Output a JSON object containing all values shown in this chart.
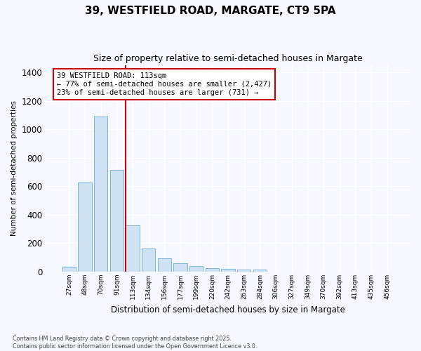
{
  "title1": "39, WESTFIELD ROAD, MARGATE, CT9 5PA",
  "title2": "Size of property relative to semi-detached houses in Margate",
  "xlabel": "Distribution of semi-detached houses by size in Margate",
  "ylabel": "Number of semi-detached properties",
  "categories": [
    "27sqm",
    "48sqm",
    "70sqm",
    "91sqm",
    "113sqm",
    "134sqm",
    "156sqm",
    "177sqm",
    "199sqm",
    "220sqm",
    "242sqm",
    "263sqm",
    "284sqm",
    "306sqm",
    "327sqm",
    "349sqm",
    "370sqm",
    "392sqm",
    "413sqm",
    "435sqm",
    "456sqm"
  ],
  "values": [
    35,
    625,
    1090,
    715,
    325,
    165,
    95,
    60,
    40,
    25,
    20,
    15,
    15,
    0,
    0,
    0,
    0,
    0,
    0,
    0,
    0
  ],
  "bar_color": "#cfe2f3",
  "bar_edge_color": "#7ab3d9",
  "property_bin_index": 4,
  "vline_color": "#cc0000",
  "annotation_title": "39 WESTFIELD ROAD: 113sqm",
  "annotation_line1": "← 77% of semi-detached houses are smaller (2,427)",
  "annotation_line2": "23% of semi-detached houses are larger (731) →",
  "annotation_box_edge_color": "#cc0000",
  "ylim": [
    0,
    1450
  ],
  "yticks": [
    0,
    200,
    400,
    600,
    800,
    1000,
    1200,
    1400
  ],
  "footnote1": "Contains HM Land Registry data © Crown copyright and database right 2025.",
  "footnote2": "Contains public sector information licensed under the Open Government Licence v3.0.",
  "bg_color": "#f5f8ff"
}
